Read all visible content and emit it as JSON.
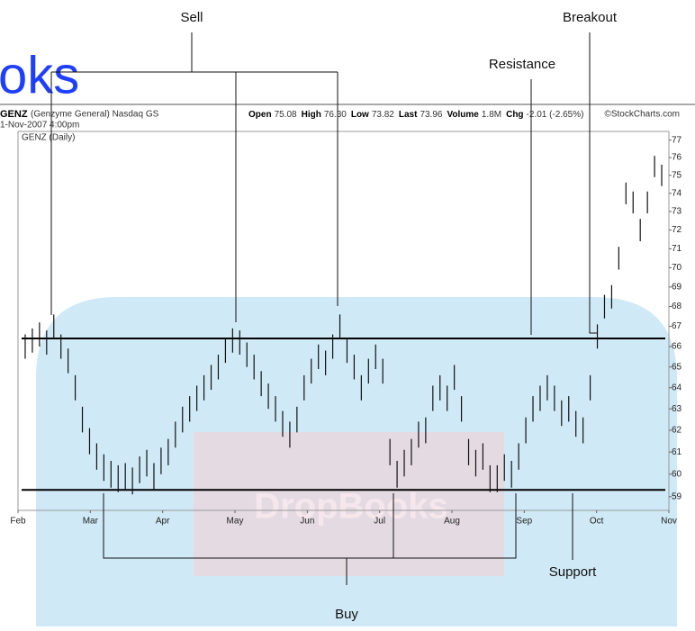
{
  "chart_data": {
    "type": "range_bar",
    "symbol": "GENZ",
    "company": "(Genzyme General) Nasdaq GS",
    "date": "1-Nov-2007 4:00pm",
    "source": "©StockCharts.com",
    "panel_label": "GENZ (Daily)",
    "quote": [
      {
        "label": "Open",
        "value": "75.08"
      },
      {
        "label": "High",
        "value": "76.30"
      },
      {
        "label": "Low",
        "value": "73.82"
      },
      {
        "label": "Last",
        "value": "73.96"
      },
      {
        "label": "Volume",
        "value": "1.8M"
      },
      {
        "label": "Chg",
        "value": "-2.01 (-2.65%)"
      }
    ],
    "months": [
      "Feb",
      "Mar",
      "Apr",
      "May",
      "Jun",
      "Jul",
      "Aug",
      "Sep",
      "Oct",
      "Nov"
    ],
    "high": [
      66.6,
      66.9,
      67.2,
      66.8,
      67.6,
      66.6,
      65.9,
      64.6,
      63.1,
      62.1,
      61.4,
      60.9,
      60.6,
      60.4,
      60.5,
      60.3,
      60.8,
      61.1,
      60.5,
      61.2,
      61.6,
      62.4,
      63.1,
      63.6,
      64.1,
      64.6,
      65.1,
      65.6,
      66.4,
      66.9,
      66.8,
      66.2,
      65.6,
      64.8,
      64.2,
      63.6,
      62.9,
      62.4,
      63.1,
      64.6,
      65.4,
      66.1,
      65.8,
      66.6,
      67.6,
      66.4,
      65.6,
      64.6,
      65.4,
      66.1,
      65.4,
      61.6,
      60.6,
      61.1,
      61.6,
      62.4,
      62.6,
      64.1,
      64.6,
      64.1,
      65.1,
      63.6,
      61.6,
      61.1,
      61.4,
      60.4,
      60.4,
      60.9,
      60.6,
      61.4,
      62.6,
      63.6,
      64.1,
      64.6,
      64.1,
      63.4,
      63.6,
      62.9,
      62.6,
      64.6,
      67.1,
      68.6,
      69.1,
      71.1,
      74.6,
      74.1,
      72.6,
      74.1,
      76.1,
      75.6
    ],
    "low": [
      65.4,
      65.7,
      66.0,
      65.6,
      66.4,
      65.4,
      64.7,
      63.4,
      61.9,
      60.9,
      60.2,
      59.7,
      59.4,
      59.2,
      59.3,
      59.1,
      59.6,
      59.9,
      59.3,
      60.0,
      60.4,
      61.2,
      61.9,
      62.4,
      62.9,
      63.4,
      63.9,
      64.4,
      65.2,
      65.7,
      65.6,
      65.0,
      64.4,
      63.6,
      63.0,
      62.4,
      61.7,
      61.2,
      61.9,
      63.4,
      64.2,
      64.9,
      64.6,
      65.4,
      66.4,
      65.2,
      64.4,
      63.4,
      64.2,
      64.9,
      64.2,
      60.4,
      59.4,
      59.9,
      60.4,
      61.2,
      61.4,
      62.9,
      63.4,
      62.9,
      63.9,
      62.4,
      60.4,
      59.9,
      60.2,
      59.2,
      59.2,
      59.7,
      59.4,
      60.2,
      61.4,
      62.4,
      62.9,
      63.4,
      62.9,
      62.2,
      62.4,
      61.7,
      61.4,
      63.4,
      65.9,
      67.4,
      67.9,
      69.9,
      73.4,
      72.9,
      71.4,
      72.9,
      74.9,
      74.4
    ],
    "color": "#111111",
    "log_scale": true,
    "ylim": [
      58.4,
      77.5
    ],
    "yticks": [
      59,
      60,
      61,
      62,
      63,
      64,
      65,
      66,
      67,
      68,
      69,
      70,
      71,
      72,
      73,
      74,
      75,
      76,
      77
    ],
    "resistance": 66.4,
    "support": 59.3,
    "annotations": {
      "sell": "Sell",
      "breakout": "Breakout",
      "resistance": "Resistance",
      "support": "Support",
      "buy": "Buy"
    },
    "watermark": "oks",
    "watermark_brand": "DropBooks"
  }
}
